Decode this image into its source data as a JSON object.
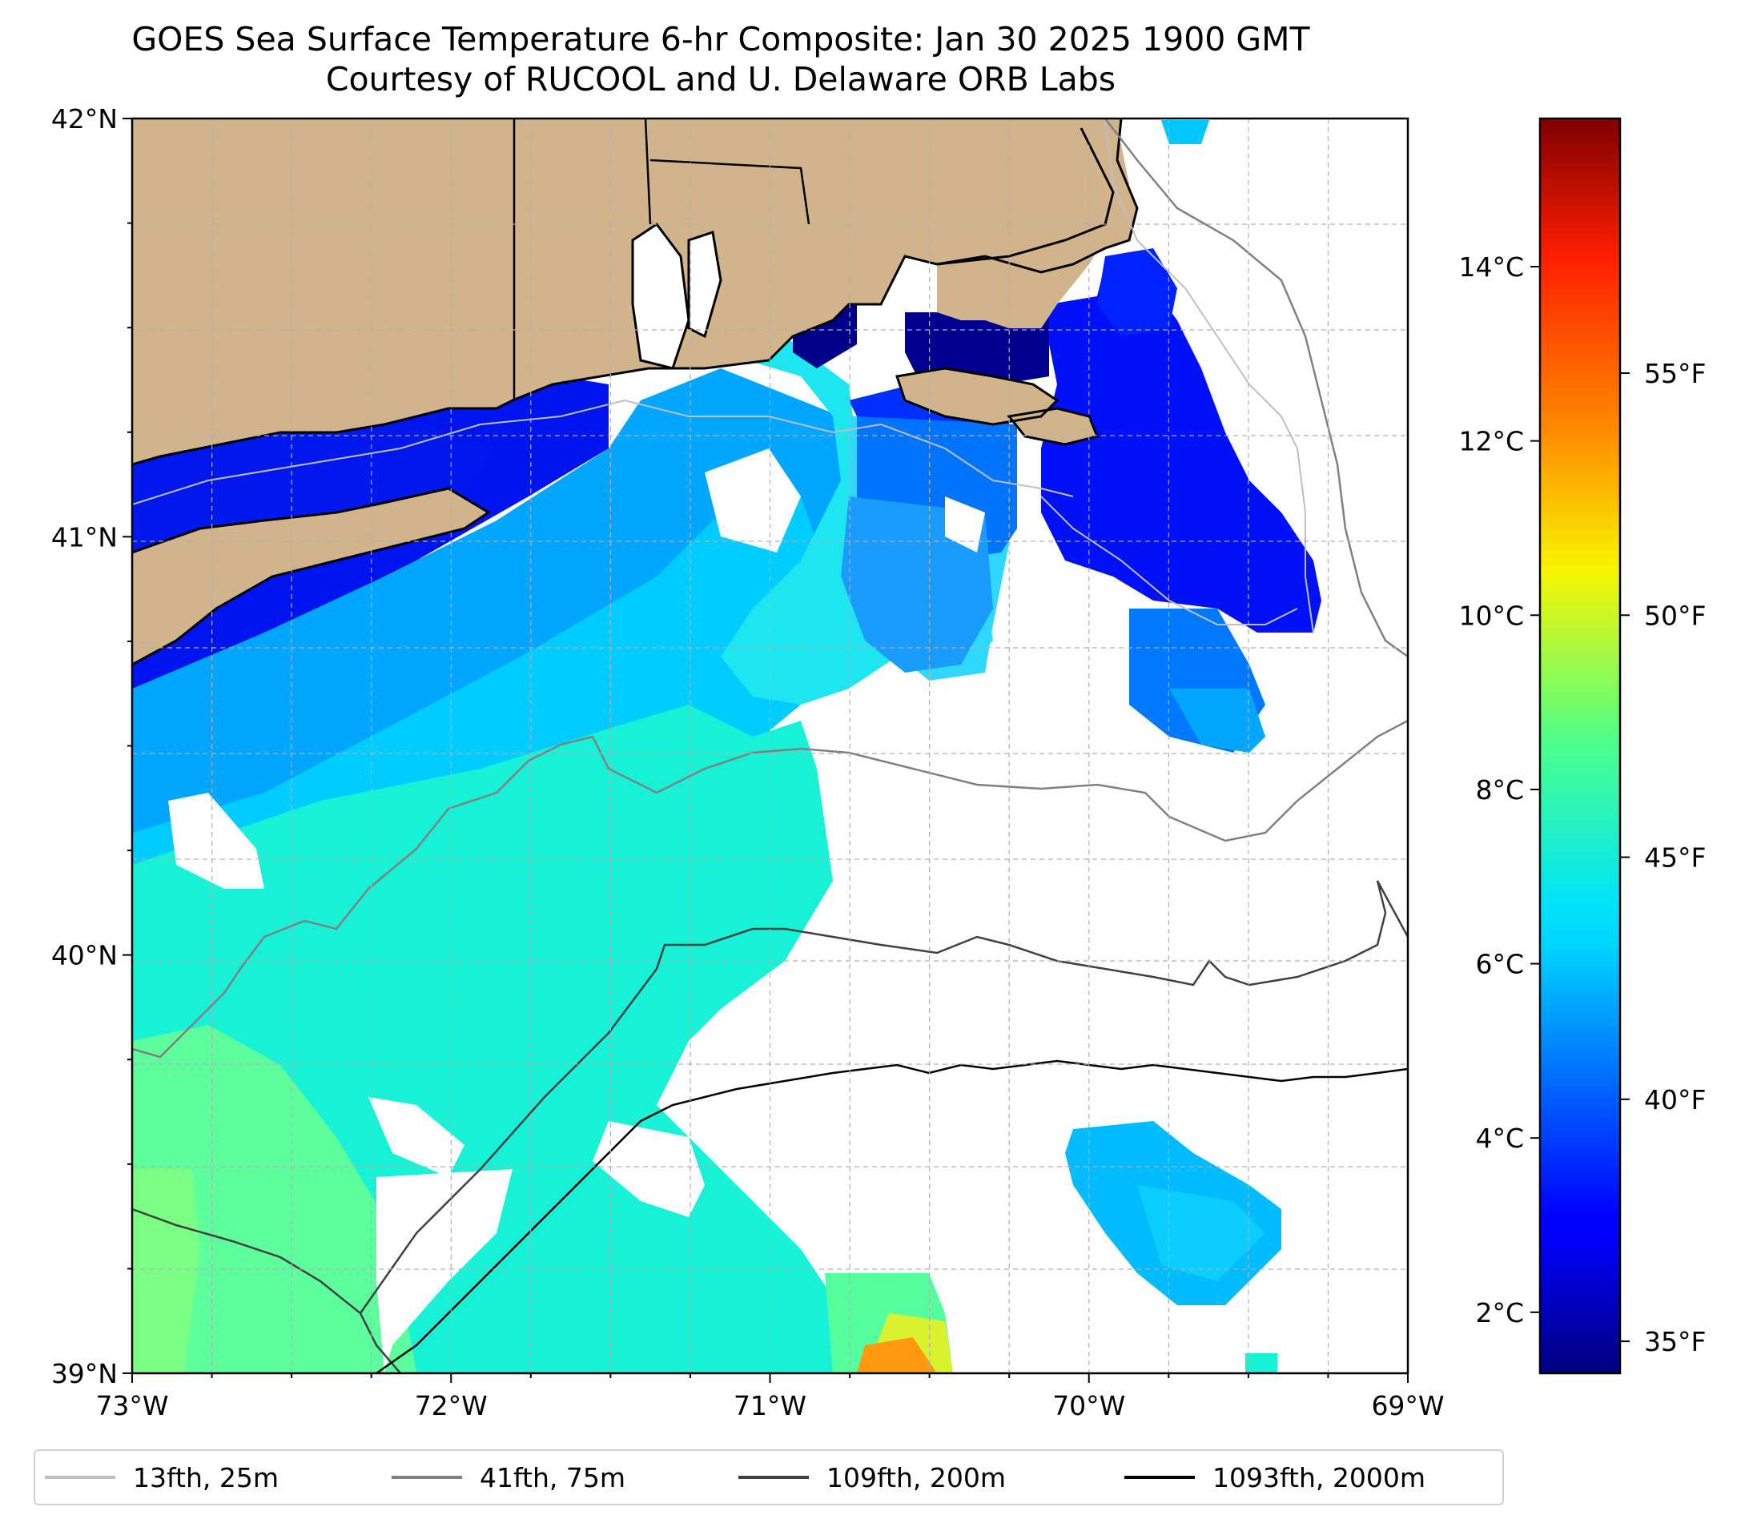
{
  "title": {
    "line1": "GOES Sea Surface Temperature 6-hr Composite: Jan 30 2025 1900 GMT",
    "line2": "Courtesy of RUCOOL and U. Delaware ORB Labs"
  },
  "map": {
    "extent": {
      "lon_min": -73,
      "lon_max": -69,
      "lat_min": 39,
      "lat_max": 42
    },
    "x_ticks": [
      {
        "value": -73,
        "label": "73°W"
      },
      {
        "value": -72,
        "label": "72°W"
      },
      {
        "value": -71,
        "label": "71°W"
      },
      {
        "value": -70,
        "label": "70°W"
      },
      {
        "value": -69,
        "label": "69°W"
      }
    ],
    "y_ticks": [
      {
        "value": 42,
        "label": "42°N"
      },
      {
        "value": 41,
        "label": "41°N"
      },
      {
        "value": 40,
        "label": "40°N"
      },
      {
        "value": 39,
        "label": "39°N"
      }
    ],
    "gridlines": true,
    "land_color": "#d2b48c",
    "no_data_color": "#ffffff"
  },
  "colorbar": {
    "colormap": "jet",
    "range_c": [
      1.3,
      15.7
    ],
    "celsius_ticks": [
      {
        "value": 2,
        "label": "2°C"
      },
      {
        "value": 4,
        "label": "4°C"
      },
      {
        "value": 6,
        "label": "6°C"
      },
      {
        "value": 8,
        "label": "8°C"
      },
      {
        "value": 10,
        "label": "10°C"
      },
      {
        "value": 12,
        "label": "12°C"
      },
      {
        "value": 14,
        "label": "14°C"
      }
    ],
    "fahrenheit_ticks": [
      {
        "value": 35,
        "label": "35°F"
      },
      {
        "value": 40,
        "label": "40°F"
      },
      {
        "value": 45,
        "label": "45°F"
      },
      {
        "value": 50,
        "label": "50°F"
      },
      {
        "value": 55,
        "label": "55°F"
      }
    ]
  },
  "legend": {
    "placement": "bottom",
    "items": [
      {
        "label": "13fth, 25m",
        "color": "#bfbfbf"
      },
      {
        "label": "41fth, 75m",
        "color": "#808080"
      },
      {
        "label": "109fth, 200m",
        "color": "#404040"
      },
      {
        "label": "1093fth, 2000m",
        "color": "#000000"
      }
    ]
  }
}
